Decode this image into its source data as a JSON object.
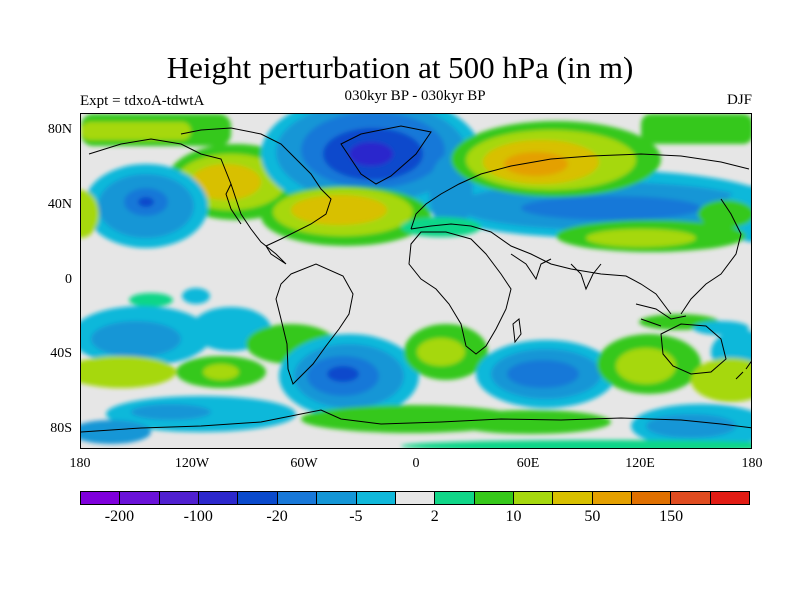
{
  "title": "Height perturbation at 500 hPa (in m)",
  "subtitle": "030kyr BP - 030kyr BP",
  "left_label": "Expt = tdxoA-tdwtA",
  "right_label": "DJF",
  "lat_ticks": [
    "80N",
    "40N",
    "0",
    "40S",
    "80S"
  ],
  "lon_ticks": [
    "180",
    "120W",
    "60W",
    "0",
    "60E",
    "120E",
    "180"
  ],
  "map": {
    "background": "#e6e6e6",
    "coastline_color": "#000000"
  },
  "colorbar": {
    "colors": [
      "#7f00dc",
      "#6a12d8",
      "#5020d0",
      "#2c28cc",
      "#0a4acc",
      "#1878d8",
      "#1496d6",
      "#10b8da",
      "#e6e6e6",
      "#10d688",
      "#36c81a",
      "#a6d80e",
      "#d8c000",
      "#e4a000",
      "#e07000",
      "#e04c20",
      "#e21c14"
    ],
    "labels": [
      "-200",
      "-100",
      "-20",
      "-5",
      "2",
      "10",
      "50",
      "150"
    ]
  }
}
